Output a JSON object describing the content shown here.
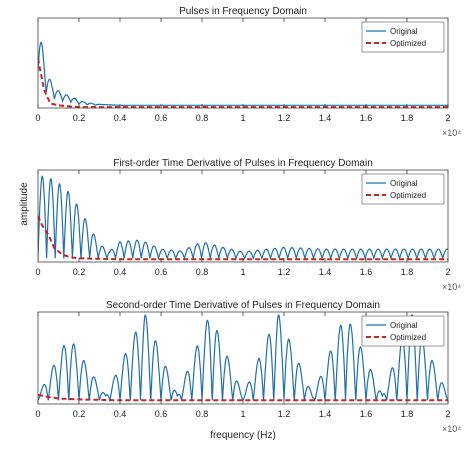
{
  "figure": {
    "ylabel_shared": "amplitude",
    "xlabel_shared": "frequency (Hz)"
  },
  "chart_data": [
    {
      "type": "line",
      "title": "Pulses in Frequency Domain",
      "xlim": [
        0,
        20000
      ],
      "x_ticks": [
        0,
        2000,
        4000,
        6000,
        8000,
        10000,
        12000,
        14000,
        16000,
        18000,
        20000
      ],
      "x_tick_labels": [
        "0",
        "0.2",
        "0.4",
        "0.6",
        "0.8",
        "1",
        "1.2",
        "1.4",
        "1.6",
        "1.8",
        "2"
      ],
      "x_exponent_label": "×10⁴",
      "ylim": [
        0,
        1
      ],
      "y_ticks_shown": false,
      "grid": false,
      "legend": {
        "placement": "top-right",
        "entries": [
          "Original",
          "Optimized"
        ]
      },
      "series": [
        {
          "name": "Original",
          "color": "#1f6fa8",
          "style": "solid",
          "x": [
            0,
            400,
            800,
            1200,
            1600,
            2000,
            2400,
            3000,
            4000,
            8000,
            12000,
            16000,
            20000
          ],
          "y": [
            0.96,
            0.38,
            0.2,
            0.14,
            0.11,
            0.06,
            0.04,
            0.02,
            0.01,
            0.01,
            0.01,
            0.01,
            0.01
          ]
        },
        {
          "name": "Optimized",
          "color": "#cc2222",
          "style": "dashed",
          "x": [
            0,
            300,
            600,
            1000,
            1400,
            2000,
            3000,
            4000,
            8000,
            12000,
            16000,
            20000
          ],
          "y": [
            0.55,
            0.2,
            0.05,
            0.03,
            0.02,
            0.01,
            0.01,
            0.01,
            0.01,
            0.01,
            0.01,
            0.01
          ]
        }
      ]
    },
    {
      "type": "line",
      "title": "First-order Time Derivative of Pulses in Frequency Domain",
      "xlim": [
        0,
        20000
      ],
      "x_ticks": [
        0,
        2000,
        4000,
        6000,
        8000,
        10000,
        12000,
        14000,
        16000,
        18000,
        20000
      ],
      "x_tick_labels": [
        "0",
        "0.2",
        "0.4",
        "0.6",
        "0.8",
        "1",
        "1.2",
        "1.4",
        "1.6",
        "1.8",
        "2"
      ],
      "x_exponent_label": "×10⁴",
      "ylim": [
        0,
        1
      ],
      "y_ticks_shown": false,
      "grid": false,
      "legend": {
        "placement": "top-right",
        "entries": [
          "Original",
          "Optimized"
        ]
      },
      "series": [
        {
          "name": "Original",
          "color": "#1f6fa8",
          "style": "solid",
          "x": [
            0,
            500,
            1000,
            1500,
            2000,
            2500,
            3000,
            3500,
            4000,
            5000,
            6000,
            7000,
            8000,
            9000,
            10000,
            12000,
            14000,
            16000,
            18000,
            20000
          ],
          "y": [
            0.9,
            0.88,
            0.82,
            0.72,
            0.55,
            0.35,
            0.15,
            0.08,
            0.18,
            0.2,
            0.1,
            0.08,
            0.18,
            0.12,
            0.07,
            0.12,
            0.1,
            0.1,
            0.1,
            0.1
          ]
        },
        {
          "name": "Optimized",
          "color": "#cc2222",
          "style": "dashed",
          "x": [
            0,
            200,
            500,
            800,
            1200,
            1600,
            2000,
            4000,
            8000,
            12000,
            16000,
            20000
          ],
          "y": [
            0.5,
            0.4,
            0.3,
            0.15,
            0.08,
            0.05,
            0.04,
            0.03,
            0.03,
            0.03,
            0.03,
            0.03
          ]
        }
      ]
    },
    {
      "type": "line",
      "title": "Second-order Time Derivative of Pulses in Frequency Domain",
      "xlim": [
        0,
        20000
      ],
      "x_ticks": [
        0,
        2000,
        4000,
        6000,
        8000,
        10000,
        12000,
        14000,
        16000,
        18000,
        20000
      ],
      "x_tick_labels": [
        "0",
        "0.2",
        "0.4",
        "0.6",
        "0.8",
        "1",
        "1.2",
        "1.4",
        "1.6",
        "1.8",
        "2"
      ],
      "x_exponent_label": "×10⁴",
      "xlabel": "frequency (Hz)",
      "ylim": [
        0,
        1
      ],
      "y_ticks_shown": false,
      "grid": false,
      "legend": {
        "placement": "top-right",
        "entries": [
          "Original",
          "Optimized"
        ]
      },
      "series": [
        {
          "name": "Original",
          "color": "#1f6fa8",
          "style": "solid",
          "envelope_peaks_x": [
            1500,
            5200,
            8400,
            11700,
            15000,
            18200
          ],
          "envelope_peaks_y": [
            0.7,
            0.95,
            0.95,
            0.95,
            0.95,
            0.95
          ],
          "envelope_nulls_x": [
            0,
            3300,
            6800,
            10000,
            13400,
            16800,
            20000
          ],
          "envelope_nulls_y": [
            0.05,
            0.05,
            0.05,
            0.05,
            0.05,
            0.05,
            0.05
          ]
        },
        {
          "name": "Optimized",
          "color": "#cc2222",
          "style": "dashed",
          "x": [
            0,
            400,
            1000,
            2000,
            4000,
            8000,
            12000,
            16000,
            20000
          ],
          "y": [
            0.1,
            0.08,
            0.06,
            0.05,
            0.04,
            0.04,
            0.04,
            0.04,
            0.04
          ]
        }
      ]
    }
  ]
}
